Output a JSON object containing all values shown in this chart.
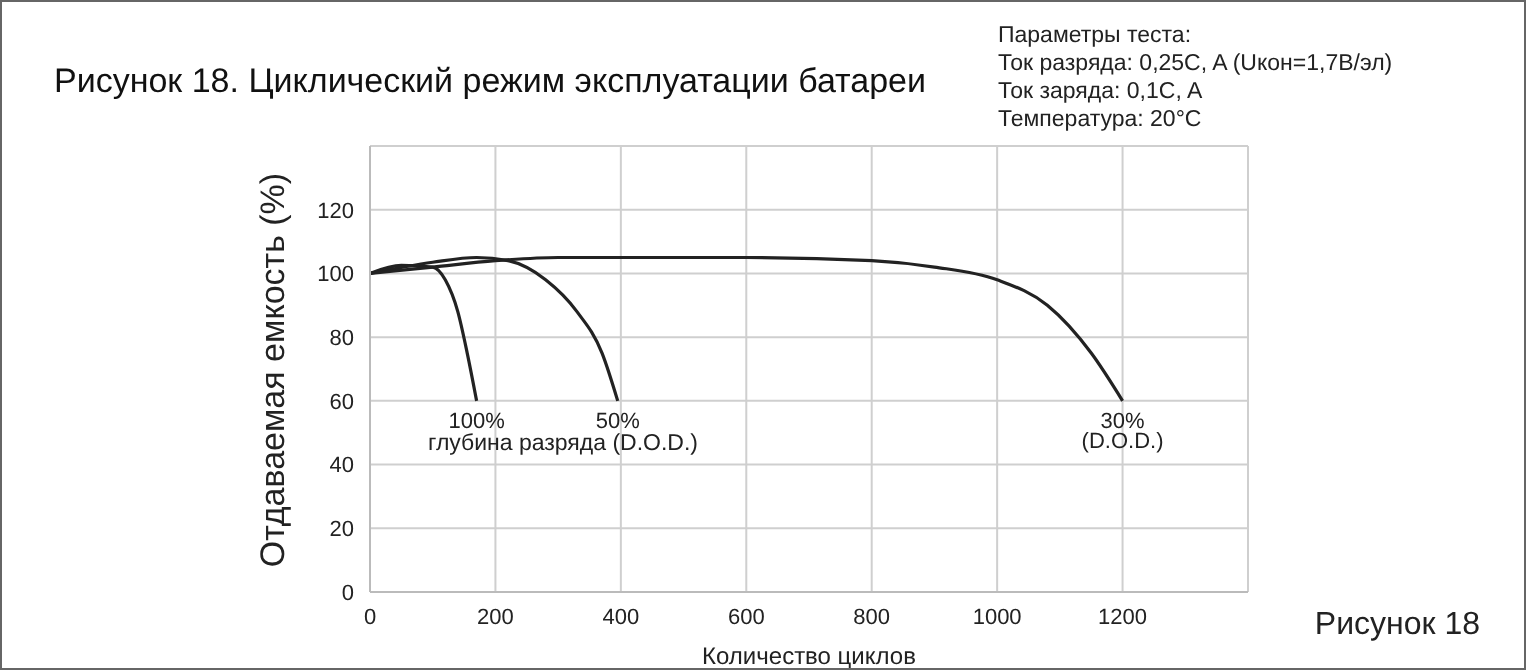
{
  "chart_data": {
    "type": "line",
    "title": "Рисунок 18. Циклический режим эксплуатации батареи",
    "xlabel": "Количество циклов",
    "ylabel": "Отдаваемая емкость (%)",
    "xlim": [
      0,
      1400
    ],
    "xticks": [
      0,
      200,
      400,
      600,
      800,
      1000,
      1200
    ],
    "ylim": [
      0,
      140
    ],
    "yticks": [
      0,
      20,
      40,
      60,
      80,
      100,
      120
    ],
    "grid": true,
    "marker": "none",
    "line_style": "solid",
    "series": [
      {
        "color": "#222222",
        "x": [
          0,
          50,
          100,
          120,
          140,
          155,
          170
        ],
        "values": [
          100,
          102.5,
          102,
          98,
          88,
          75,
          60
        ]
      },
      {
        "color": "#222222",
        "x": [
          0,
          100,
          170,
          220,
          280,
          330,
          370,
          395
        ],
        "values": [
          100,
          103.5,
          105,
          104,
          98,
          88,
          75,
          60
        ]
      },
      {
        "color": "#222222",
        "x": [
          0,
          100,
          200,
          300,
          600,
          800,
          900,
          1000,
          1080,
          1150,
          1200
        ],
        "values": [
          100,
          102,
          104,
          105,
          105,
          104,
          102,
          98,
          90,
          75,
          60
        ]
      }
    ],
    "annotations": [
      "Параметры теста:\nТок разряда: 0,25C, A (Uкон=1,7В/эл)\nТок заряда: 0,1C, A\nТемпература: 20°C",
      "Рисунок 18",
      "глубина разряда (D.O.D.)",
      {
        "text": "100%",
        "x": 170,
        "y": 60
      },
      {
        "text": "50%",
        "x": 395,
        "y": 60
      },
      {
        "text": "30%",
        "x": 1200,
        "y": 60
      },
      {
        "text": "(D.O.D.)",
        "x": 1200,
        "y": 60
      }
    ]
  }
}
